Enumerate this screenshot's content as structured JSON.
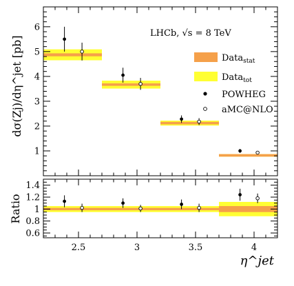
{
  "chart_data": {
    "type": "errorbar",
    "label": "LHCb, √s = 8 TeV",
    "xlabel": "η^jet",
    "bin_edges": [
      2.2,
      2.7,
      3.2,
      3.7,
      4.2
    ],
    "xlim": [
      2.2,
      4.2
    ],
    "xticks": [
      "2.5",
      "3",
      "3.5",
      "4"
    ],
    "legend": [
      {
        "key": "data_stat",
        "label": "Data",
        "sub": "stat",
        "color": "#f5a04a"
      },
      {
        "key": "data_tot",
        "label": "Data",
        "sub": "tot",
        "color": "#ffff33"
      },
      {
        "key": "powheg",
        "label": "POWHEG",
        "marker": "filled-circle"
      },
      {
        "key": "amcnlo",
        "label": "aMC@NLO",
        "marker": "open-circle"
      }
    ],
    "main": {
      "ylabel": "dσ(Zj)/dη^jet [pb]",
      "ylim": [
        0,
        6.8
      ],
      "yticks": [
        "1",
        "2",
        "3",
        "4",
        "5",
        "6"
      ],
      "data": [
        4.87,
        3.67,
        2.12,
        0.82
      ],
      "data_stat": [
        0.06,
        0.05,
        0.05,
        0.05
      ],
      "data_tot": [
        0.22,
        0.16,
        0.1,
        0.05
      ],
      "powheg": {
        "x": [
          2.38,
          2.88,
          3.38,
          3.88
        ],
        "y": [
          5.5,
          4.05,
          2.28,
          1.0
        ],
        "err": [
          0.5,
          0.3,
          0.15,
          0.08
        ]
      },
      "amcnlo": {
        "x": [
          2.53,
          3.03,
          3.53,
          4.03
        ],
        "y": [
          5.0,
          3.7,
          2.18,
          0.93
        ],
        "err": [
          0.36,
          0.24,
          0.14,
          0.06
        ]
      }
    },
    "ratio": {
      "ylabel": "Ratio",
      "ylim": [
        0.52,
        1.5
      ],
      "yticks": [
        "0.6",
        "0.8",
        "1",
        "1.2",
        "1.4"
      ],
      "stat": [
        0.02,
        0.02,
        0.02,
        0.05
      ],
      "tot": [
        0.05,
        0.05,
        0.05,
        0.12
      ],
      "powheg": {
        "x": [
          2.38,
          2.88,
          3.38,
          3.88
        ],
        "y": [
          1.13,
          1.1,
          1.08,
          1.24
        ],
        "err": [
          0.1,
          0.08,
          0.08,
          0.1
        ]
      },
      "amcnlo": {
        "x": [
          2.53,
          3.03,
          3.53,
          4.03
        ],
        "y": [
          1.02,
          1.01,
          1.02,
          1.18
        ],
        "err": [
          0.07,
          0.06,
          0.07,
          0.08
        ]
      }
    }
  }
}
